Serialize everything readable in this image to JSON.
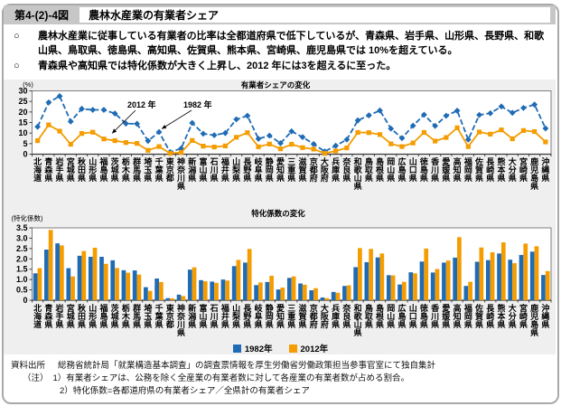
{
  "header": {
    "figure_no": "第4-(2)-4図",
    "title": "農林水産業の有業者シェア"
  },
  "bullets": [
    {
      "marker": "○",
      "text": "農林水産業に従事している有業者の比率は全都道府県で低下しているが、青森県、岩手県、山形県、長野県、和歌山県、鳥取県、徳島県、高知県、佐賀県、熊本県、宮崎県、鹿児島県では 10%を超えている。"
    },
    {
      "marker": "○",
      "text": "青森県や高知県では特化係数が大きく上昇し、2012 年には3を超えるに至った。"
    }
  ],
  "colors": {
    "series_1982": "#1f6bb4",
    "series_2012": "#f49c00",
    "panel_bg": "#efefef",
    "header_bg": "#c7c7c7",
    "plot_frame": "#7f7f7f"
  },
  "legend": {
    "items": [
      {
        "label": "1982年",
        "color_key": "series_1982"
      },
      {
        "label": "2012年",
        "color_key": "series_2012"
      }
    ]
  },
  "prefectures": [
    "北海道",
    "青森県",
    "岩手県",
    "宮城県",
    "秋田県",
    "山形県",
    "福島県",
    "茨城県",
    "栃木県",
    "群馬県",
    "埼玉県",
    "千葉県",
    "東京都",
    "神奈川県",
    "新潟県",
    "富山県",
    "石川県",
    "福井県",
    "山梨県",
    "長野県",
    "岐阜県",
    "静岡県",
    "愛知県",
    "三重県",
    "滋賀県",
    "京都府",
    "大阪府",
    "兵庫県",
    "奈良県",
    "和歌山県",
    "鳥取県",
    "島根県",
    "岡山県",
    "広島県",
    "山口県",
    "徳島県",
    "香川県",
    "愛媛県",
    "高知県",
    "福岡県",
    "佐賀県",
    "長崎県",
    "熊本県",
    "大分県",
    "宮崎県",
    "鹿児島県",
    "沖縄県"
  ],
  "chart_data": [
    {
      "type": "line",
      "title": "有業者シェアの変化",
      "unit_label": "(%)",
      "ylim": [
        0,
        30
      ],
      "ytick_step": 5,
      "grid": false,
      "categories_ref": "prefectures",
      "series": [
        {
          "name": "1982年",
          "style": "dashed-diamond",
          "values": [
            13.0,
            24.5,
            27.5,
            15.5,
            21.5,
            21.0,
            21.0,
            19.3,
            14.5,
            14.4,
            6.3,
            10.5,
            1.0,
            2.7,
            14.8,
            9.7,
            9.0,
            10.0,
            16.5,
            18.2,
            7.3,
            8.8,
            5.2,
            10.8,
            8.1,
            4.8,
            1.3,
            4.0,
            6.9,
            16.0,
            18.4,
            20.7,
            12.1,
            7.6,
            13.5,
            18.7,
            13.4,
            18.2,
            20.6,
            6.9,
            18.6,
            19.4,
            22.6,
            19.6,
            21.9,
            23.5,
            12.2
          ]
        },
        {
          "name": "2012年",
          "style": "solid-square",
          "values": [
            6.4,
            13.9,
            10.9,
            4.7,
            9.8,
            10.4,
            7.2,
            6.4,
            5.5,
            5.1,
            1.8,
            3.6,
            0.4,
            0.8,
            6.5,
            3.8,
            3.4,
            3.9,
            8.0,
            10.2,
            3.5,
            4.8,
            2.5,
            4.7,
            3.1,
            2.4,
            0.4,
            1.5,
            3.0,
            10.3,
            10.2,
            9.3,
            4.9,
            3.6,
            5.3,
            10.3,
            6.2,
            7.9,
            12.5,
            3.6,
            10.5,
            9.5,
            11.5,
            7.3,
            11.2,
            10.7,
            5.8
          ]
        }
      ],
      "annotations": [
        {
          "text": "2012 年",
          "points_to_series": "2012年"
        },
        {
          "text": "1982 年",
          "points_to_series": "1982年"
        }
      ]
    },
    {
      "type": "bar",
      "title": "特化係数の変化",
      "unit_label": "(特化係数)",
      "ylim": [
        0,
        3.5
      ],
      "ytick_step": 0.5,
      "grid": false,
      "categories_ref": "prefectures",
      "series": [
        {
          "name": "1982年",
          "values": [
            1.3,
            2.45,
            2.75,
            1.55,
            2.15,
            2.1,
            2.1,
            1.93,
            1.45,
            1.44,
            0.63,
            1.05,
            0.1,
            0.27,
            1.48,
            0.97,
            0.9,
            1.0,
            1.65,
            1.82,
            0.73,
            0.88,
            0.52,
            1.08,
            0.81,
            0.48,
            0.13,
            0.4,
            0.69,
            1.6,
            1.84,
            2.07,
            1.21,
            0.76,
            1.35,
            1.87,
            1.34,
            1.82,
            2.06,
            0.69,
            1.86,
            1.94,
            2.26,
            1.96,
            2.19,
            2.35,
            1.22
          ]
        },
        {
          "name": "2012年",
          "values": [
            1.55,
            3.4,
            2.65,
            1.15,
            2.38,
            2.54,
            1.76,
            1.56,
            1.33,
            1.24,
            0.45,
            0.88,
            0.09,
            0.2,
            1.59,
            0.92,
            0.84,
            0.95,
            1.95,
            2.48,
            0.86,
            1.18,
            0.61,
            1.15,
            0.75,
            0.58,
            0.1,
            0.36,
            0.72,
            2.52,
            2.48,
            2.26,
            1.2,
            0.89,
            1.3,
            2.5,
            1.51,
            1.92,
            3.05,
            0.89,
            2.55,
            2.32,
            2.8,
            1.79,
            2.74,
            2.61,
            1.41
          ]
        }
      ]
    }
  ],
  "footer": {
    "rows": [
      {
        "label": "資料出所",
        "text": "総務省統計局「就業構造基本調査」の調査票情報を厚生労働省労働政策担当参事官室にて独自集計"
      },
      {
        "label": "（注）",
        "text": "1）有業者シェアは、公務を除く全産業の有業者数に対して各産業の有業者数が占める割合。"
      },
      {
        "label": "",
        "text": "2）特化係数=各都道府県の有業者シェア／全県計の有業者シェア"
      }
    ]
  }
}
